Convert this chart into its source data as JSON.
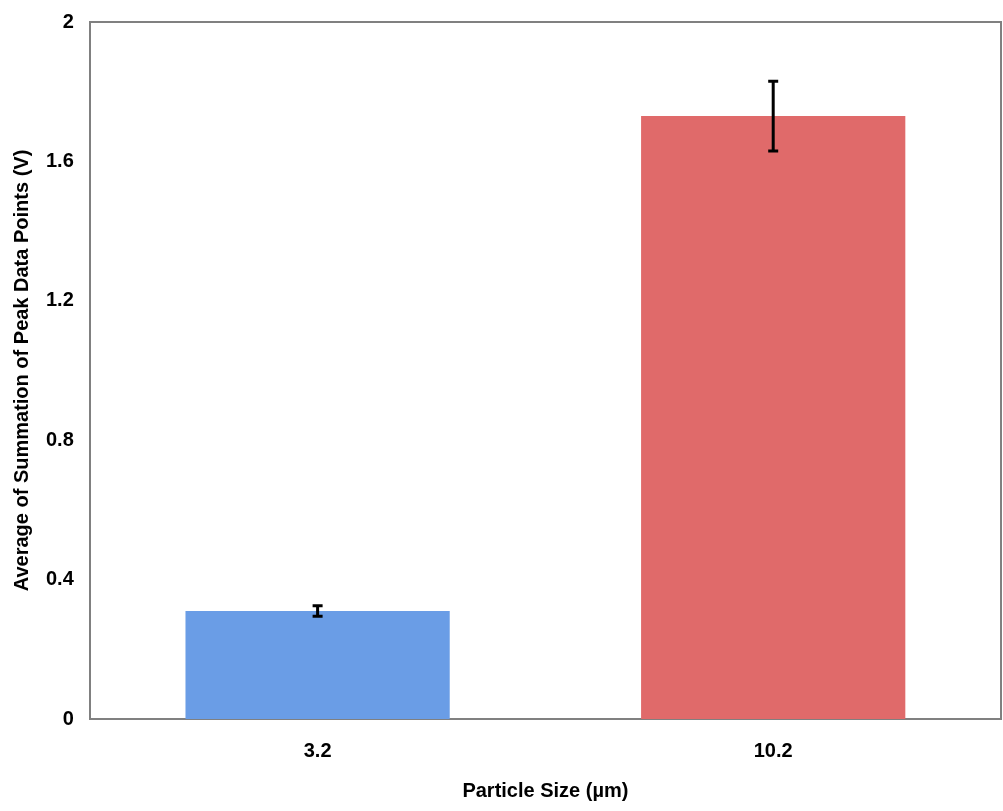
{
  "chart_data": {
    "type": "bar",
    "xlabel": "Particle Size (µm)",
    "ylabel": "Average of Summation of Peak Data Points (V)",
    "categories": [
      "3.2",
      "10.2"
    ],
    "values": [
      0.31,
      1.73
    ],
    "colors": [
      "#6a9de6",
      "#e06a6a"
    ],
    "errors": [
      0.015,
      0.1
    ],
    "ylim": [
      0,
      2
    ],
    "yticks": [
      0,
      0.4,
      0.8,
      1.2,
      1.6,
      2
    ],
    "grid": false,
    "legend": false
  }
}
